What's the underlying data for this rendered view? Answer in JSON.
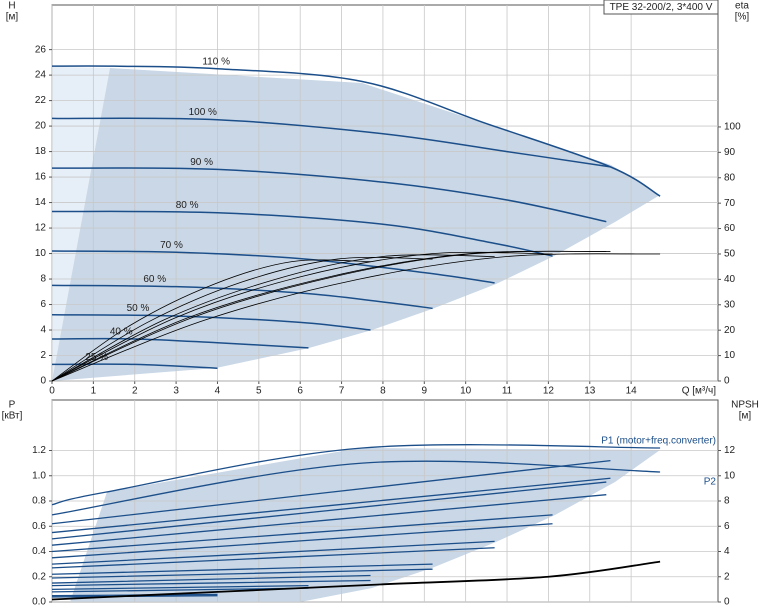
{
  "chart_data": [
    {
      "type": "line",
      "title": "TPE 32-200/2, 3*400 V",
      "x_label": "Q [м³/ч]",
      "y_label": "H",
      "y_unit": "[м]",
      "y2_label": "eta",
      "y2_unit": "[%]",
      "xlim": [
        0,
        16.1
      ],
      "xticks": [
        0,
        1,
        2,
        3,
        4,
        5,
        6,
        7,
        8,
        9,
        10,
        11,
        12,
        13,
        14
      ],
      "ylim": [
        0,
        29.5
      ],
      "yticks": [
        0,
        2,
        4,
        6,
        8,
        10,
        12,
        14,
        16,
        18,
        20,
        22,
        24,
        26
      ],
      "y2lim": [
        0,
        148
      ],
      "y2ticks": [
        0,
        10,
        20,
        30,
        40,
        50,
        60,
        70,
        80,
        90,
        100
      ],
      "grid": true,
      "series": [
        {
          "name": "110 %",
          "color": "#1c4f8a",
          "x": [
            0,
            1.5,
            4,
            7.5,
            10.5,
            13.5,
            14.7
          ],
          "values": [
            24.7,
            24.7,
            24.5,
            23.5,
            20.2,
            16.8,
            14.5
          ]
        },
        {
          "name": "100 %",
          "color": "#1c4f8a",
          "x": [
            0,
            4,
            8,
            11,
            13.5
          ],
          "values": [
            20.6,
            20.5,
            19.4,
            18.0,
            16.8
          ]
        },
        {
          "name": "90 %",
          "color": "#1c4f8a",
          "x": [
            0,
            4,
            8,
            11,
            13.4
          ],
          "values": [
            16.7,
            16.6,
            15.6,
            14.2,
            12.5
          ]
        },
        {
          "name": "80 %",
          "color": "#1c4f8a",
          "x": [
            0,
            4,
            8,
            10.7,
            12.1
          ],
          "values": [
            13.3,
            13.2,
            12.3,
            10.8,
            9.8
          ]
        },
        {
          "name": "70 %",
          "color": "#1c4f8a",
          "x": [
            0,
            3,
            6,
            9,
            10.7
          ],
          "values": [
            10.2,
            10.1,
            9.6,
            8.5,
            7.7
          ]
        },
        {
          "name": "60 %",
          "color": "#1c4f8a",
          "x": [
            0,
            3,
            6,
            8,
            9.2
          ],
          "values": [
            7.5,
            7.4,
            6.9,
            6.2,
            5.7
          ]
        },
        {
          "name": "50 %",
          "color": "#1c4f8a",
          "x": [
            0,
            3,
            6,
            7.7
          ],
          "values": [
            5.2,
            5.1,
            4.6,
            4.0
          ]
        },
        {
          "name": "40 %",
          "color": "#1c4f8a",
          "x": [
            0,
            2,
            4,
            6.2
          ],
          "values": [
            3.3,
            3.3,
            3.0,
            2.6
          ]
        },
        {
          "name": "25 %",
          "color": "#1c4f8a",
          "x": [
            0,
            2,
            4
          ],
          "values": [
            1.3,
            1.3,
            1.0
          ]
        },
        {
          "color": "#000000",
          "axis": "y2",
          "x": [
            0,
            3.7,
            7.4,
            11,
            14.7
          ],
          "values": [
            0,
            24,
            40,
            49,
            50
          ]
        },
        {
          "color": "#000000",
          "axis": "y2",
          "x": [
            0,
            3.4,
            6.8,
            10.1,
            13.5
          ],
          "values": [
            0,
            25,
            41,
            50,
            51
          ]
        },
        {
          "color": "#000000",
          "axis": "y2",
          "x": [
            0,
            3.3,
            6.7,
            10,
            13.4
          ],
          "values": [
            0,
            25,
            41,
            50,
            51
          ]
        },
        {
          "color": "#000000",
          "axis": "y2",
          "x": [
            0,
            3,
            6,
            9.1,
            12.1
          ],
          "values": [
            0,
            25,
            41,
            50,
            50
          ]
        },
        {
          "color": "#000000",
          "axis": "y2",
          "x": [
            0,
            2.7,
            5.4,
            8,
            10.7
          ],
          "values": [
            0,
            24,
            40,
            49,
            49
          ]
        },
        {
          "color": "#000000",
          "axis": "y2",
          "x": [
            0,
            2.3,
            4.6,
            6.9,
            9.2
          ],
          "values": [
            0,
            23,
            39,
            48,
            48
          ]
        },
        {
          "color": "#000000",
          "axis": "y2",
          "x": [
            0,
            1.9,
            3.9,
            5.8,
            7.7
          ],
          "values": [
            0,
            22,
            38,
            47,
            47
          ]
        }
      ]
    },
    {
      "type": "line",
      "y_label": "P",
      "y_unit": "[кВт]",
      "y2_label": "NPSH",
      "y2_unit": "[м]",
      "xlim": [
        0,
        16.1
      ],
      "ylim": [
        0,
        1.6
      ],
      "yticks": [
        {
          "value": 0,
          "label": "0.0"
        },
        0.2,
        0.4,
        0.6,
        0.8,
        {
          "value": 1,
          "label": "1.0"
        },
        1.2
      ],
      "y2lim": [
        0,
        16
      ],
      "y2ticks": [
        0,
        2,
        4,
        6,
        8,
        10,
        12
      ],
      "grid": true,
      "series": [
        {
          "name": "P1 (motor+freq.converter)",
          "color": "#1c4f8a",
          "x": [
            0,
            1.3,
            7.5,
            14.7
          ],
          "values": [
            0.77,
            0.87,
            1.22,
            1.22
          ]
        },
        {
          "name": "P2",
          "color": "#1c4f8a",
          "x": [
            0,
            7.5,
            14.7
          ],
          "values": [
            0.69,
            1.1,
            1.03
          ]
        },
        {
          "color": "#1c4f8a",
          "x": [
            0,
            13.5
          ],
          "values": [
            0.62,
            1.12
          ]
        },
        {
          "color": "#1c4f8a",
          "x": [
            0,
            13.5
          ],
          "values": [
            0.55,
            0.98
          ]
        },
        {
          "color": "#1c4f8a",
          "x": [
            0,
            13.4
          ],
          "values": [
            0.5,
            0.95
          ]
        },
        {
          "color": "#1c4f8a",
          "x": [
            0,
            13.4
          ],
          "values": [
            0.45,
            0.85
          ]
        },
        {
          "color": "#1c4f8a",
          "x": [
            0,
            12.1
          ],
          "values": [
            0.4,
            0.69
          ]
        },
        {
          "color": "#1c4f8a",
          "x": [
            0,
            12.1
          ],
          "values": [
            0.35,
            0.62
          ]
        },
        {
          "color": "#1c4f8a",
          "x": [
            0,
            10.7
          ],
          "values": [
            0.3,
            0.48
          ]
        },
        {
          "color": "#1c4f8a",
          "x": [
            0,
            10.7
          ],
          "values": [
            0.27,
            0.43
          ]
        },
        {
          "color": "#1c4f8a",
          "x": [
            0,
            9.2
          ],
          "values": [
            0.22,
            0.3
          ]
        },
        {
          "color": "#1c4f8a",
          "x": [
            0,
            9.2
          ],
          "values": [
            0.19,
            0.26
          ]
        },
        {
          "color": "#1c4f8a",
          "x": [
            0,
            7.7
          ],
          "values": [
            0.15,
            0.21
          ]
        },
        {
          "color": "#1c4f8a",
          "x": [
            0,
            7.7
          ],
          "values": [
            0.13,
            0.17
          ]
        },
        {
          "color": "#1c4f8a",
          "x": [
            0,
            6.2
          ],
          "values": [
            0.1,
            0.13
          ]
        },
        {
          "color": "#1c4f8a",
          "x": [
            0,
            6.2
          ],
          "values": [
            0.08,
            0.11
          ]
        },
        {
          "color": "#1c4f8a",
          "x": [
            0,
            4
          ],
          "values": [
            0.05,
            0.06
          ]
        },
        {
          "color": "#1c4f8a",
          "x": [
            0,
            4
          ],
          "values": [
            0.04,
            0.05
          ]
        },
        {
          "color": "#000000",
          "axis": "y2",
          "x": [
            0,
            4,
            8,
            12,
            14.7
          ],
          "values": [
            0.2,
            0.8,
            1.4,
            2.0,
            3.2
          ]
        }
      ]
    }
  ]
}
